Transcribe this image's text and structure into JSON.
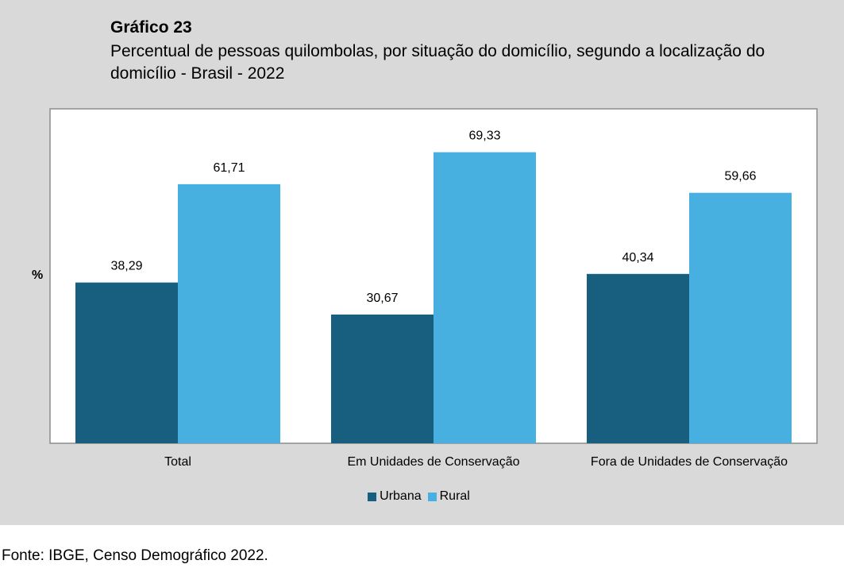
{
  "header": {
    "title": "Gráfico 23",
    "subtitle": "Percentual de pessoas quilombolas, por situação do domicílio, segundo a localização do domicílio - Brasil - 2022"
  },
  "footer": {
    "source": "Fonte: IBGE, Censo Demográfico 2022."
  },
  "colors": {
    "urbana": "#175e7f",
    "rural": "#47b0e0",
    "panel_background": "#d9d9d9",
    "plot_background": "#ffffff"
  },
  "chart_data": {
    "type": "bar",
    "title": "Gráfico 23",
    "subtitle": "Percentual de pessoas quilombolas, por situação do domicílio, segundo a localização do domicílio - Brasil - 2022",
    "xlabel": "",
    "ylabel": "%",
    "ylim": [
      0,
      80
    ],
    "grid": false,
    "legend_position": "bottom",
    "categories": [
      "Total",
      "Em Unidades de Conservação",
      "Fora de Unidades de Conservação"
    ],
    "series": [
      {
        "name": "Urbana",
        "values": [
          38.29,
          30.67,
          40.34
        ],
        "labels": [
          "38,29",
          "30,67",
          "40,34"
        ]
      },
      {
        "name": "Rural",
        "values": [
          61.71,
          69.33,
          59.66
        ],
        "labels": [
          "61,71",
          "69,33",
          "59,66"
        ]
      }
    ]
  }
}
